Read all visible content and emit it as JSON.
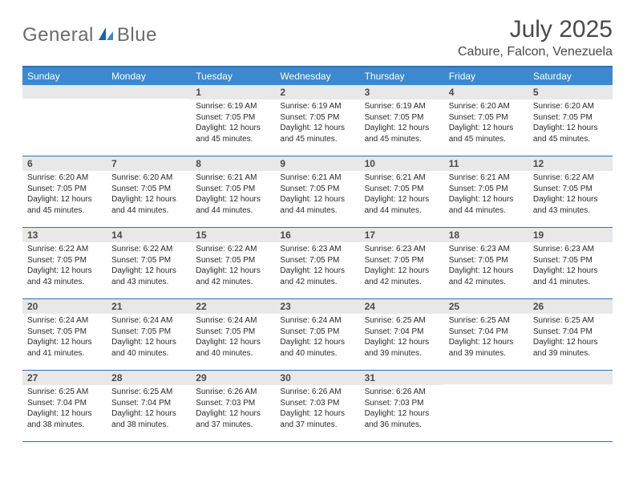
{
  "logo": {
    "part1": "General",
    "part2": "Blue"
  },
  "title": "July 2025",
  "location": "Cabure, Falcon, Venezuela",
  "colors": {
    "header_bg": "#3b89d0",
    "border": "#2f6fb5",
    "daynum_bg": "#e8e8e8"
  },
  "weekdays": [
    "Sunday",
    "Monday",
    "Tuesday",
    "Wednesday",
    "Thursday",
    "Friday",
    "Saturday"
  ],
  "weeks": [
    [
      null,
      null,
      {
        "n": "1",
        "sr": "6:19 AM",
        "ss": "7:05 PM",
        "dl": "12 hours and 45 minutes."
      },
      {
        "n": "2",
        "sr": "6:19 AM",
        "ss": "7:05 PM",
        "dl": "12 hours and 45 minutes."
      },
      {
        "n": "3",
        "sr": "6:19 AM",
        "ss": "7:05 PM",
        "dl": "12 hours and 45 minutes."
      },
      {
        "n": "4",
        "sr": "6:20 AM",
        "ss": "7:05 PM",
        "dl": "12 hours and 45 minutes."
      },
      {
        "n": "5",
        "sr": "6:20 AM",
        "ss": "7:05 PM",
        "dl": "12 hours and 45 minutes."
      }
    ],
    [
      {
        "n": "6",
        "sr": "6:20 AM",
        "ss": "7:05 PM",
        "dl": "12 hours and 45 minutes."
      },
      {
        "n": "7",
        "sr": "6:20 AM",
        "ss": "7:05 PM",
        "dl": "12 hours and 44 minutes."
      },
      {
        "n": "8",
        "sr": "6:21 AM",
        "ss": "7:05 PM",
        "dl": "12 hours and 44 minutes."
      },
      {
        "n": "9",
        "sr": "6:21 AM",
        "ss": "7:05 PM",
        "dl": "12 hours and 44 minutes."
      },
      {
        "n": "10",
        "sr": "6:21 AM",
        "ss": "7:05 PM",
        "dl": "12 hours and 44 minutes."
      },
      {
        "n": "11",
        "sr": "6:21 AM",
        "ss": "7:05 PM",
        "dl": "12 hours and 44 minutes."
      },
      {
        "n": "12",
        "sr": "6:22 AM",
        "ss": "7:05 PM",
        "dl": "12 hours and 43 minutes."
      }
    ],
    [
      {
        "n": "13",
        "sr": "6:22 AM",
        "ss": "7:05 PM",
        "dl": "12 hours and 43 minutes."
      },
      {
        "n": "14",
        "sr": "6:22 AM",
        "ss": "7:05 PM",
        "dl": "12 hours and 43 minutes."
      },
      {
        "n": "15",
        "sr": "6:22 AM",
        "ss": "7:05 PM",
        "dl": "12 hours and 42 minutes."
      },
      {
        "n": "16",
        "sr": "6:23 AM",
        "ss": "7:05 PM",
        "dl": "12 hours and 42 minutes."
      },
      {
        "n": "17",
        "sr": "6:23 AM",
        "ss": "7:05 PM",
        "dl": "12 hours and 42 minutes."
      },
      {
        "n": "18",
        "sr": "6:23 AM",
        "ss": "7:05 PM",
        "dl": "12 hours and 42 minutes."
      },
      {
        "n": "19",
        "sr": "6:23 AM",
        "ss": "7:05 PM",
        "dl": "12 hours and 41 minutes."
      }
    ],
    [
      {
        "n": "20",
        "sr": "6:24 AM",
        "ss": "7:05 PM",
        "dl": "12 hours and 41 minutes."
      },
      {
        "n": "21",
        "sr": "6:24 AM",
        "ss": "7:05 PM",
        "dl": "12 hours and 40 minutes."
      },
      {
        "n": "22",
        "sr": "6:24 AM",
        "ss": "7:05 PM",
        "dl": "12 hours and 40 minutes."
      },
      {
        "n": "23",
        "sr": "6:24 AM",
        "ss": "7:05 PM",
        "dl": "12 hours and 40 minutes."
      },
      {
        "n": "24",
        "sr": "6:25 AM",
        "ss": "7:04 PM",
        "dl": "12 hours and 39 minutes."
      },
      {
        "n": "25",
        "sr": "6:25 AM",
        "ss": "7:04 PM",
        "dl": "12 hours and 39 minutes."
      },
      {
        "n": "26",
        "sr": "6:25 AM",
        "ss": "7:04 PM",
        "dl": "12 hours and 39 minutes."
      }
    ],
    [
      {
        "n": "27",
        "sr": "6:25 AM",
        "ss": "7:04 PM",
        "dl": "12 hours and 38 minutes."
      },
      {
        "n": "28",
        "sr": "6:25 AM",
        "ss": "7:04 PM",
        "dl": "12 hours and 38 minutes."
      },
      {
        "n": "29",
        "sr": "6:26 AM",
        "ss": "7:03 PM",
        "dl": "12 hours and 37 minutes."
      },
      {
        "n": "30",
        "sr": "6:26 AM",
        "ss": "7:03 PM",
        "dl": "12 hours and 37 minutes."
      },
      {
        "n": "31",
        "sr": "6:26 AM",
        "ss": "7:03 PM",
        "dl": "12 hours and 36 minutes."
      },
      null,
      null
    ]
  ],
  "labels": {
    "sunrise": "Sunrise:",
    "sunset": "Sunset:",
    "daylight": "Daylight:"
  }
}
